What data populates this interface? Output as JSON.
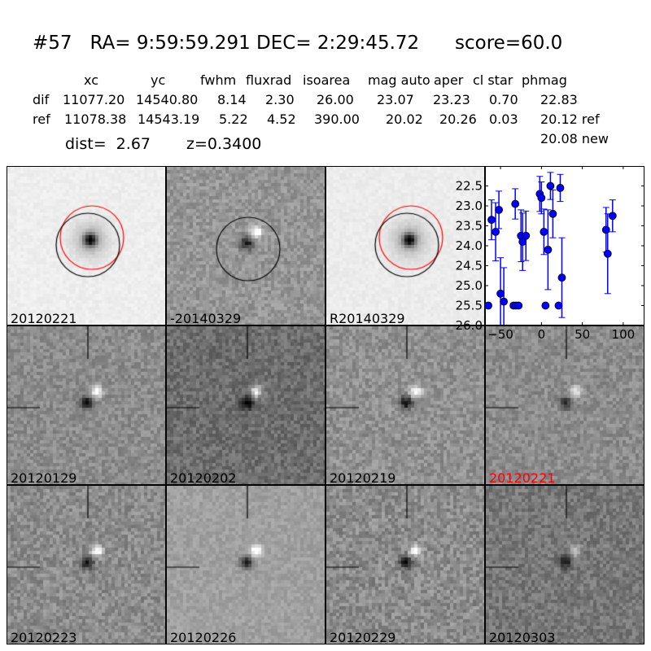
{
  "title": "#57   RA= 9:59:59.291 DEC= 2:29:45.72      score=60.0",
  "table": {
    "headers": [
      "xc",
      "yc",
      "fwhm",
      "fluxrad",
      "isoarea",
      "mag auto",
      "aper",
      "cl star",
      "phmag"
    ],
    "rows": [
      {
        "name": "dif",
        "values": [
          "11077.20",
          "14540.80",
          "8.14",
          "2.30",
          "26.00",
          "23.07",
          "23.23",
          "0.70",
          "22.83"
        ]
      },
      {
        "name": "ref",
        "values": [
          "11078.38",
          "14543.19",
          "5.22",
          "4.52",
          "390.00",
          "20.02",
          "20.26",
          "0.03",
          "20.12 ref"
        ]
      }
    ],
    "extra": "20.08 new",
    "dist": "dist=  2.67",
    "z": "z=0.3400"
  },
  "stamps": [
    {
      "label": "20120221",
      "color": "#000000"
    },
    {
      "label": "-20140329",
      "color": "#000000"
    },
    {
      "label": "R20140329",
      "color": "#000000"
    },
    {
      "label": "20120129",
      "color": "#000000"
    },
    {
      "label": "20120202",
      "color": "#000000"
    },
    {
      "label": "20120219",
      "color": "#000000"
    },
    {
      "label": "20120221",
      "color": "#ff0000"
    },
    {
      "label": "20120223",
      "color": "#000000"
    },
    {
      "label": "20120226",
      "color": "#000000"
    },
    {
      "label": "20120229",
      "color": "#000000"
    },
    {
      "label": "20120303",
      "color": "#000000"
    }
  ],
  "chart_data": {
    "type": "scatter",
    "xlim": [
      -69,
      126
    ],
    "ylim": [
      26.0,
      22.0
    ],
    "xticks": [
      -50,
      0,
      50,
      100
    ],
    "yticks": [
      22.5,
      23.0,
      23.5,
      24.0,
      24.5,
      25.0,
      25.5,
      26.0
    ],
    "xtick_labels": [
      "−50",
      "0",
      "50",
      "100"
    ],
    "ytick_labels": [
      "22.5",
      "23.0",
      "23.5",
      "24.0",
      "24.5",
      "25.0",
      "25.5",
      "26.0"
    ],
    "color": "#0000ff",
    "points": [
      {
        "x": -65,
        "y": 25.5,
        "err": 0.05
      },
      {
        "x": -61,
        "y": 23.35,
        "err": 0.5
      },
      {
        "x": -56,
        "y": 23.65,
        "err": 0.73
      },
      {
        "x": -52,
        "y": 23.1,
        "err": 0.47
      },
      {
        "x": -50,
        "y": 25.2,
        "err": 0.9
      },
      {
        "x": -46,
        "y": 25.4,
        "err": 0.85
      },
      {
        "x": -34,
        "y": 25.5,
        "err": 0.05
      },
      {
        "x": -31,
        "y": 25.5,
        "err": 0.05
      },
      {
        "x": -28,
        "y": 25.5,
        "err": 0.05
      },
      {
        "x": -32,
        "y": 22.95,
        "err": 0.38
      },
      {
        "x": -25,
        "y": 23.75,
        "err": 0.65
      },
      {
        "x": -23,
        "y": 23.9,
        "err": 0.72
      },
      {
        "x": -19,
        "y": 23.75,
        "err": 0.62
      },
      {
        "x": -2,
        "y": 22.7,
        "err": 0.44
      },
      {
        "x": 0,
        "y": 22.8,
        "err": 0.4
      },
      {
        "x": 3,
        "y": 23.65,
        "err": 0.57
      },
      {
        "x": 5,
        "y": 25.5,
        "err": 0.05
      },
      {
        "x": 8,
        "y": 24.1,
        "err": 1.0
      },
      {
        "x": 11,
        "y": 22.5,
        "err": 0.34
      },
      {
        "x": 14,
        "y": 23.2,
        "err": 0.6
      },
      {
        "x": 21,
        "y": 25.5,
        "err": 0.05
      },
      {
        "x": 23,
        "y": 22.55,
        "err": 0.34
      },
      {
        "x": 25,
        "y": 24.8,
        "err": 1.0
      },
      {
        "x": 79,
        "y": 23.6,
        "err": 0.56
      },
      {
        "x": 81,
        "y": 24.2,
        "err": 1.0
      },
      {
        "x": 87,
        "y": 23.25,
        "err": 0.4
      }
    ]
  }
}
